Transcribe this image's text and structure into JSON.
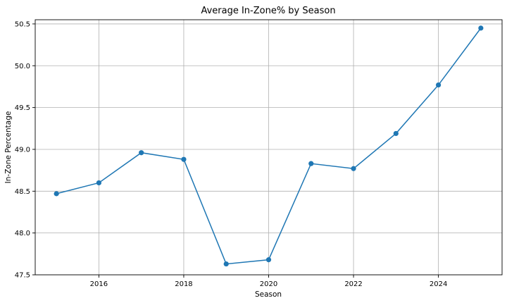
{
  "chart_data": {
    "type": "line",
    "title": "Average In-Zone% by Season",
    "xlabel": "Season",
    "ylabel": "In-Zone Percentage",
    "x": [
      2015,
      2016,
      2017,
      2018,
      2019,
      2020,
      2021,
      2022,
      2023,
      2024,
      2025
    ],
    "series": [
      {
        "values": [
          48.47,
          48.6,
          48.96,
          48.88,
          47.63,
          47.68,
          48.83,
          48.77,
          49.19,
          49.77,
          50.45
        ],
        "color": "#1f77b4",
        "marker": "circle"
      }
    ],
    "xlim": [
      2014.5,
      2025.5
    ],
    "ylim": [
      47.5,
      50.55
    ],
    "xticks": [
      2016,
      2018,
      2020,
      2022,
      2024
    ],
    "yticks": [
      47.5,
      48.0,
      48.5,
      49.0,
      49.5,
      50.0,
      50.5
    ],
    "xtick_labels": [
      "2016",
      "2018",
      "2020",
      "2022",
      "2024"
    ],
    "ytick_labels": [
      "47.5",
      "48.0",
      "48.5",
      "49.0",
      "49.5",
      "50.0",
      "50.5"
    ],
    "grid": true,
    "legend": "none"
  }
}
